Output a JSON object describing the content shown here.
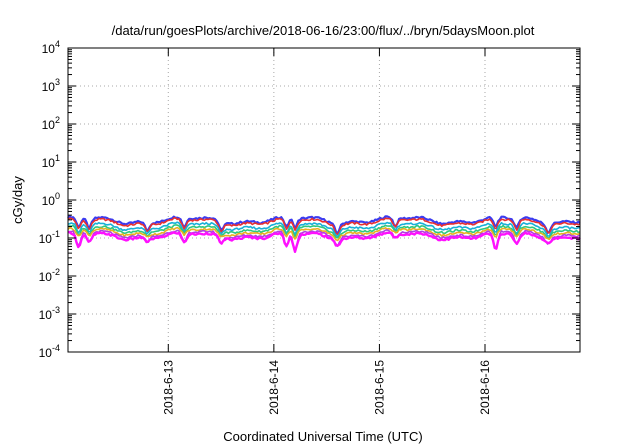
{
  "chart_data": {
    "type": "line",
    "title": "/data/run/goesPlots/archive/2018-06-16/23:00/flux/../bryn/5daysMoon.plot",
    "xlabel": "Coordinated Universal Time (UTC)",
    "ylabel": "cGy/day",
    "yscale": "log",
    "ylim": [
      0.0001,
      10000
    ],
    "xlim": [
      0,
      4.85
    ],
    "grid": true,
    "y_ticks": [
      {
        "base": "10",
        "exp": "-4",
        "value": 0.0001
      },
      {
        "base": "10",
        "exp": "-3",
        "value": 0.001
      },
      {
        "base": "10",
        "exp": "-2",
        "value": 0.01
      },
      {
        "base": "10",
        "exp": "-1",
        "value": 0.1
      },
      {
        "base": "10",
        "exp": "0",
        "value": 1
      },
      {
        "base": "10",
        "exp": "1",
        "value": 10
      },
      {
        "base": "10",
        "exp": "2",
        "value": 100
      },
      {
        "base": "10",
        "exp": "3",
        "value": 1000
      },
      {
        "base": "10",
        "exp": "4",
        "value": 10000
      }
    ],
    "x_ticks": [
      {
        "label": "2018-6-13",
        "value": 0.95
      },
      {
        "label": "2018-6-14",
        "value": 1.95
      },
      {
        "label": "2018-6-15",
        "value": 2.95
      },
      {
        "label": "2018-6-16",
        "value": 3.95
      }
    ],
    "series": [
      {
        "color": "#3b3bf0",
        "base": 0.3,
        "lw": 2.2
      },
      {
        "color": "#e83030",
        "base": 0.27,
        "lw": 1.6
      },
      {
        "color": "#18b0d8",
        "base": 0.21,
        "lw": 1.6
      },
      {
        "color": "#2ec880",
        "base": 0.175,
        "lw": 1.6
      },
      {
        "color": "#e8b020",
        "base": 0.15,
        "lw": 1.6
      },
      {
        "color": "#b040e0",
        "base": 0.13,
        "lw": 1.6
      },
      {
        "color": "#ff10ff",
        "base": 0.115,
        "lw": 2.4
      }
    ],
    "dips": [
      {
        "x": 0.1,
        "min": 0.05
      },
      {
        "x": 0.2,
        "min": 0.07
      },
      {
        "x": 0.75,
        "min": 0.09
      },
      {
        "x": 1.1,
        "min": 0.065
      },
      {
        "x": 1.45,
        "min": 0.08
      },
      {
        "x": 2.07,
        "min": 0.05
      },
      {
        "x": 2.15,
        "min": 0.04
      },
      {
        "x": 2.55,
        "min": 0.08
      },
      {
        "x": 3.1,
        "min": 0.085
      },
      {
        "x": 4.05,
        "min": 0.04
      },
      {
        "x": 4.25,
        "min": 0.06
      },
      {
        "x": 4.55,
        "min": 0.09
      }
    ]
  }
}
